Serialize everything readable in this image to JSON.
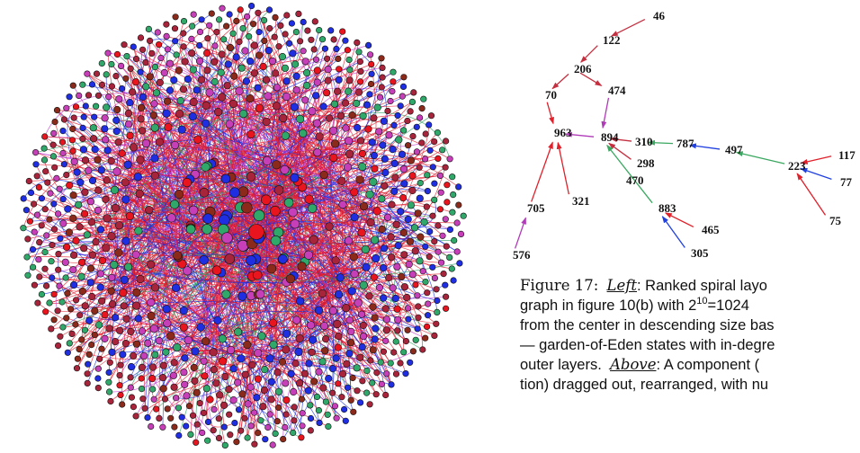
{
  "figure": {
    "tree_nodes": [
      {
        "id": "46"
      },
      {
        "id": "122"
      },
      {
        "id": "206"
      },
      {
        "id": "70"
      },
      {
        "id": "474"
      },
      {
        "id": "963"
      },
      {
        "id": "894"
      },
      {
        "id": "310"
      },
      {
        "id": "787"
      },
      {
        "id": "497"
      },
      {
        "id": "223"
      },
      {
        "id": "117"
      },
      {
        "id": "77"
      },
      {
        "id": "75"
      },
      {
        "id": "298"
      },
      {
        "id": "470"
      },
      {
        "id": "883"
      },
      {
        "id": "465"
      },
      {
        "id": "305"
      },
      {
        "id": "705"
      },
      {
        "id": "321"
      },
      {
        "id": "576"
      }
    ],
    "tree_edges": [
      {
        "from": "46",
        "to": "122",
        "color": "#c43040"
      },
      {
        "from": "122",
        "to": "206",
        "color": "#c43040"
      },
      {
        "from": "206",
        "to": "70",
        "color": "#c43040"
      },
      {
        "from": "206",
        "to": "474",
        "color": "#c43040"
      },
      {
        "from": "474",
        "to": "894",
        "color": "#b03ab8"
      },
      {
        "from": "70",
        "to": "963",
        "color": "#e0202a"
      },
      {
        "from": "894",
        "to": "963",
        "color": "#b03ab8"
      },
      {
        "from": "310",
        "to": "894",
        "color": "#c43040"
      },
      {
        "from": "787",
        "to": "310",
        "color": "#3aa860"
      },
      {
        "from": "497",
        "to": "787",
        "color": "#2040e0"
      },
      {
        "from": "223",
        "to": "497",
        "color": "#3aa860"
      },
      {
        "from": "117",
        "to": "223",
        "color": "#e0202a"
      },
      {
        "from": "77",
        "to": "223",
        "color": "#2040e0"
      },
      {
        "from": "75",
        "to": "223",
        "color": "#e0202a"
      },
      {
        "from": "298",
        "to": "894",
        "color": "#c43040"
      },
      {
        "from": "883",
        "to": "894",
        "color": "#3aa860"
      },
      {
        "from": "465",
        "to": "883",
        "color": "#e0202a"
      },
      {
        "from": "305",
        "to": "883",
        "color": "#2040e0"
      },
      {
        "from": "705",
        "to": "963",
        "color": "#e0202a"
      },
      {
        "from": "321",
        "to": "963",
        "color": "#e0202a"
      },
      {
        "from": "576",
        "to": "705",
        "color": "#b03ab8"
      }
    ],
    "spiral_node_count": 1024,
    "node_colors": [
      "#e8141e",
      "#1e2ee0",
      "#2fa86a",
      "#a8243a",
      "#c63fb8",
      "#8b2a1a"
    ],
    "edge_colors": [
      "#e01a2a",
      "#1a30e0",
      "#c03ad0",
      "#2aa060"
    ]
  },
  "caption": {
    "line1_prefix": "Figure 17:",
    "line1_kw": "Left",
    "line1_rest": ": Ranked spiral layo",
    "line2_a": "graph in figure 10(b) with 2",
    "line2_sup": "10",
    "line2_b": "=1024",
    "line3": "from the center in descending size bas",
    "line4": "— garden-of-Eden states with in-degre",
    "line5_a": "outer layers.",
    "line5_kw": "Above",
    "line5_b": ": A component (",
    "line6": "tion) dragged out, rearranged, with nu"
  }
}
